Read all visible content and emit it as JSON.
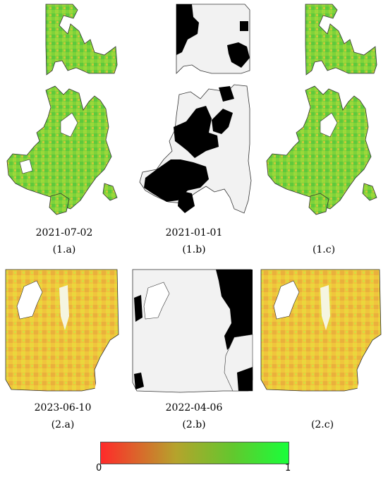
{
  "panels": [
    {
      "id": "1.a",
      "date": "2021-07-02",
      "label": "(1.a)",
      "kind": "ndvi",
      "tone": "green"
    },
    {
      "id": "1.b",
      "date": "2021-01-01",
      "label": "(1.b)",
      "kind": "mask"
    },
    {
      "id": "1.c",
      "date": "",
      "label": "(1.c)",
      "kind": "ndvi",
      "tone": "green"
    },
    {
      "id": "2.a",
      "date": "2023-06-10",
      "label": "(2.a)",
      "kind": "ndvi",
      "tone": "yellow"
    },
    {
      "id": "2.b",
      "date": "2022-04-06",
      "label": "(2.b)",
      "kind": "mask"
    },
    {
      "id": "2.c",
      "date": "",
      "label": "(2.c)",
      "kind": "ndvi",
      "tone": "yellow"
    }
  ],
  "colorbar": {
    "min_label": "0",
    "max_label": "1",
    "colors": [
      "#ff2a2a",
      "#b5a32c",
      "#63c72e",
      "#19ff3a"
    ]
  }
}
